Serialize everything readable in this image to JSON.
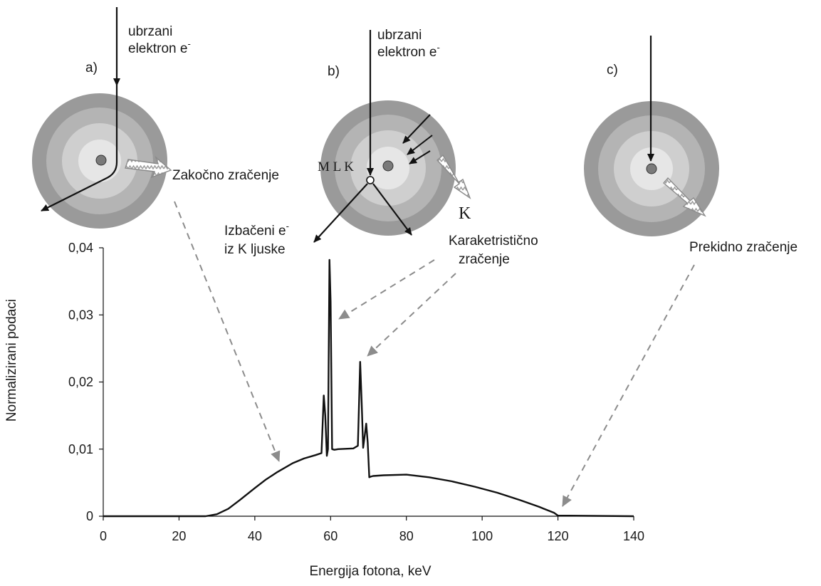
{
  "panels": {
    "a": {
      "letter": "a)",
      "electron_line1": "ubrzani",
      "electron_line2": "elektron e",
      "electron_sup": "-",
      "radiation": "Zakočno zračenje"
    },
    "b": {
      "letter": "b)",
      "electron_line1": "ubrzani",
      "electron_line2": "elektron e",
      "electron_sup": "-",
      "shell_labels": "M L K",
      "k_label": "K",
      "ejected_line1": "Izbačeni e",
      "ejected_sup": "-",
      "ejected_line2": "iz K ljuske",
      "characteristic_line1": "Karaketristično",
      "characteristic_line2": "zračenje"
    },
    "c": {
      "letter": "c)",
      "radiation": "Prekidno zračenje"
    }
  },
  "colors": {
    "atom_outer": "#9a9a9a",
    "atom_mid": "#b4b4b4",
    "atom_inner": "#cfcfcf",
    "atom_center": "#e6e6e6",
    "nucleus": "#7a7a7a",
    "curve": "#111111",
    "dashed_arrow": "#8c8c8c"
  },
  "chart_data": {
    "type": "line",
    "xlabel": "Energija fotona, keV",
    "ylabel": "Normalizirani podaci",
    "xlim": [
      0,
      140
    ],
    "ylim": [
      0,
      0.04
    ],
    "x_ticks": [
      0,
      20,
      40,
      60,
      80,
      100,
      120,
      140
    ],
    "x_tick_labels": [
      "0",
      "20",
      "40",
      "60",
      "80",
      "100",
      "120",
      "140"
    ],
    "y_ticks": [
      0,
      0.01,
      0.02,
      0.03,
      0.04
    ],
    "y_tick_labels": [
      "0",
      "0,01",
      "0,02",
      "0,03",
      "0,04"
    ],
    "grid": false,
    "series": [
      {
        "x": [
          0,
          27,
          30,
          33,
          36,
          40,
          43,
          46,
          50,
          53,
          56,
          57.6,
          58.2,
          58.6,
          59.0,
          59.3,
          59.7,
          60.0,
          60.4,
          61.0,
          62,
          66,
          67.2,
          67.8,
          68.2,
          68.6,
          69.0,
          69.4,
          69.8,
          70.2,
          70.6,
          71.2,
          74,
          80,
          86,
          92,
          98,
          104,
          110,
          115,
          119,
          120,
          140
        ],
        "y": [
          0,
          0,
          0.0003,
          0.0011,
          0.0024,
          0.0042,
          0.0055,
          0.0066,
          0.0079,
          0.0086,
          0.0091,
          0.0094,
          0.018,
          0.015,
          0.009,
          0.01,
          0.0382,
          0.032,
          0.01,
          0.0099,
          0.01,
          0.0101,
          0.0105,
          0.023,
          0.017,
          0.0102,
          0.012,
          0.0138,
          0.011,
          0.0058,
          0.0059,
          0.006,
          0.0061,
          0.0062,
          0.0058,
          0.0052,
          0.0044,
          0.0035,
          0.0024,
          0.0014,
          0.0005,
          0.0001,
          0
        ]
      }
    ]
  }
}
